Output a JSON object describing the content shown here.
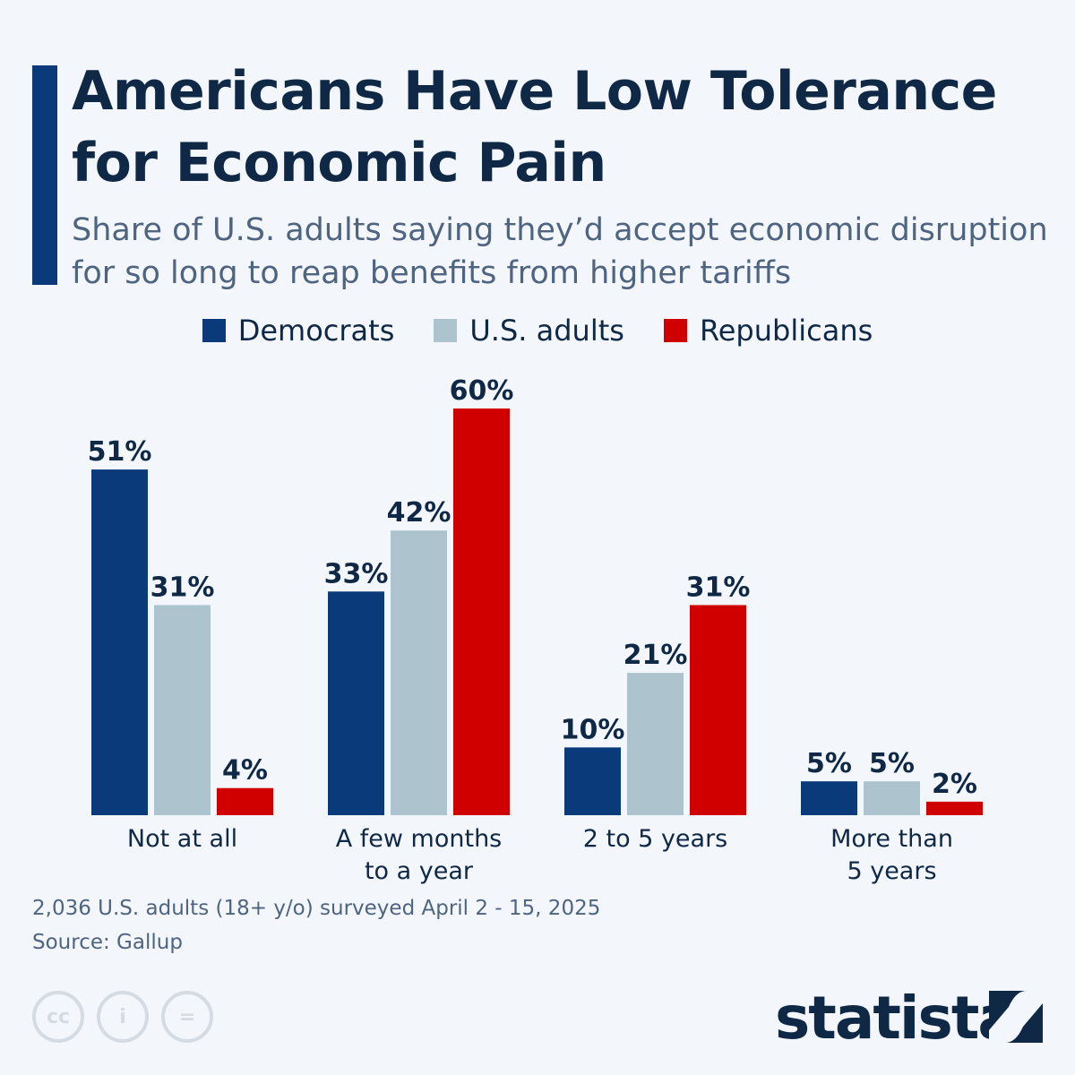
{
  "header": {
    "title": "Americans Have Low Tolerance for Economic Pain",
    "subtitle": "Share of U.S. adults saying they’d accept economic disruption for so long to reap benefits from higher tariffs"
  },
  "chart_data": {
    "type": "bar",
    "categories": [
      "Not at all",
      "A few months\nto a year",
      "2 to 5 years",
      "More than\n5 years"
    ],
    "series": [
      {
        "name": "Democrats",
        "color": "#0b3a7a",
        "values": [
          51,
          33,
          10,
          5
        ]
      },
      {
        "name": "U.S. adults",
        "color": "#adc4ce",
        "values": [
          31,
          42,
          21,
          5
        ]
      },
      {
        "name": "Republicans",
        "color": "#d00000",
        "values": [
          4,
          60,
          31,
          2
        ]
      }
    ],
    "value_suffix": "%",
    "ylim": [
      0,
      60
    ],
    "grid": false,
    "legend": "top-center"
  },
  "footer": {
    "note": "2,036 U.S. adults (18+ y/o) surveyed April 2 - 15, 2025",
    "source": "Source: Gallup",
    "license_icons": [
      "cc-icon",
      "attribution-icon",
      "no-derivatives-icon"
    ],
    "license_text": [
      "cc",
      "i",
      "="
    ],
    "brand": "statista"
  }
}
